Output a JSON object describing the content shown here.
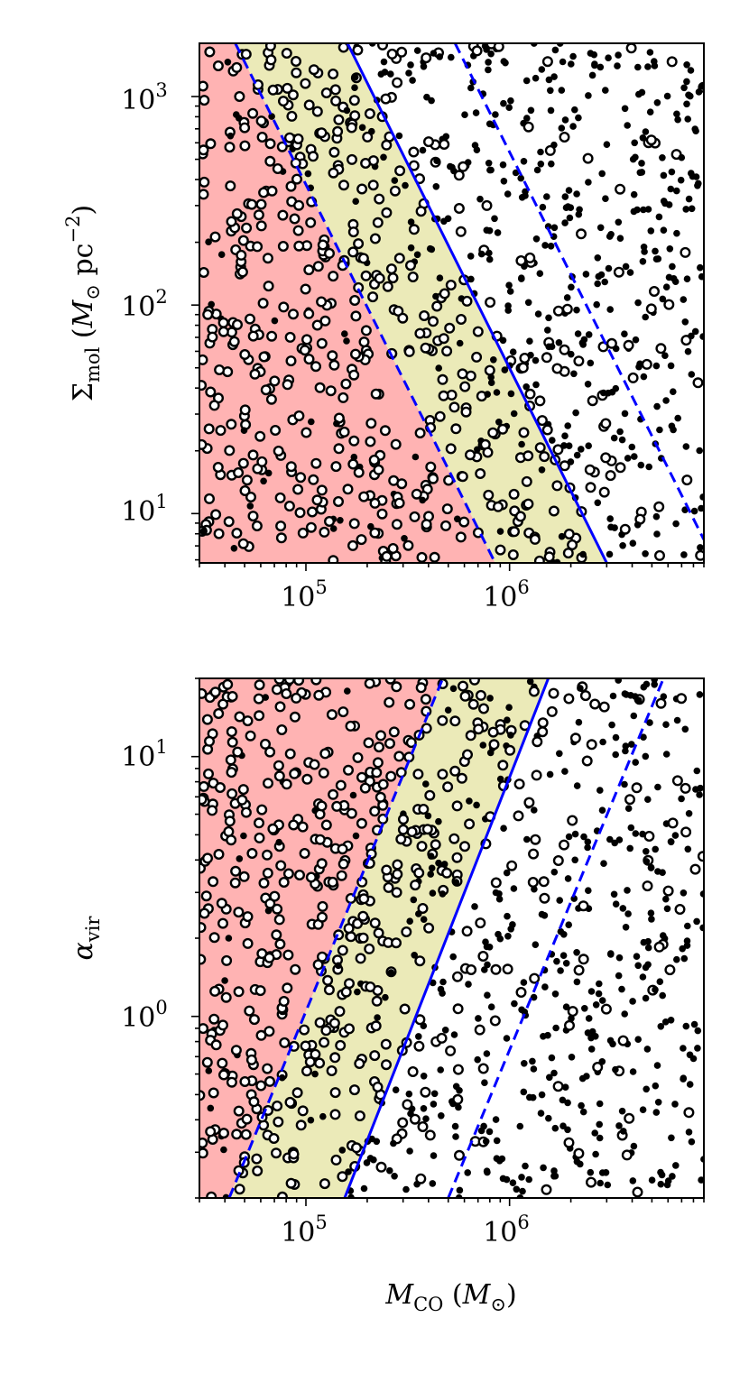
{
  "chart_data": [
    {
      "type": "scatter",
      "panel": "top",
      "xlabel": {
        "base": "M",
        "sub": "CO",
        "unit_open": " (",
        "unit": "M",
        "unit_sub": "⊙",
        "unit_close": ")"
      },
      "ylabel": {
        "base": "Σ",
        "sub": "mol",
        "unit_open": " (",
        "unit": "M",
        "unit_sub": "⊙",
        "unit_mid": " pc",
        "unit_sup": "−2",
        "unit_close": ")"
      },
      "xscale": "log",
      "yscale": "log",
      "xlim": [
        30000,
        9000000
      ],
      "ylim": [
        5.8,
        1800
      ],
      "xticks": [
        {
          "base": "10",
          "exp": "5"
        },
        {
          "base": "10",
          "exp": "6"
        }
      ],
      "yticks": [
        {
          "base": "10",
          "exp": "1"
        },
        {
          "base": "10",
          "exp": "2"
        },
        {
          "base": "10",
          "exp": "3"
        }
      ],
      "regions": [
        {
          "name": "below lower limit",
          "color": "#ffb3b3"
        },
        {
          "name": "between limits",
          "color": "#ebeab8"
        }
      ],
      "lines": [
        {
          "style": "solid",
          "color": "#0000ff",
          "points": [
            [
              160000,
              1800
            ],
            [
              3000000,
              5.8
            ]
          ]
        },
        {
          "style": "dashed",
          "color": "#0000ff",
          "points": [
            [
              45000,
              1800
            ],
            [
              850000,
              5.8
            ]
          ]
        },
        {
          "style": "dashed",
          "color": "#0000ff",
          "points": [
            [
              540000,
              1800
            ],
            [
              9000000,
              7.5
            ]
          ]
        }
      ],
      "series": [
        {
          "marker": "open circle",
          "color": "#000000",
          "n": 560
        },
        {
          "marker": "filled circle",
          "color": "#000000",
          "n": 430
        }
      ]
    },
    {
      "type": "scatter",
      "panel": "bottom",
      "xlabel": {
        "base": "M",
        "sub": "CO",
        "unit_open": " (",
        "unit": "M",
        "unit_sub": "⊙",
        "unit_close": ")"
      },
      "ylabel": {
        "base": "α",
        "sub": "vir"
      },
      "xscale": "log",
      "yscale": "log",
      "xlim": [
        30000,
        9000000
      ],
      "ylim": [
        0.2,
        20
      ],
      "xticks": [
        {
          "base": "10",
          "exp": "5"
        },
        {
          "base": "10",
          "exp": "6"
        }
      ],
      "yticks": [
        {
          "base": "10",
          "exp": "0"
        },
        {
          "base": "10",
          "exp": "1"
        }
      ],
      "regions": [
        {
          "name": "below lower limit",
          "color": "#ffb3b3"
        },
        {
          "name": "between limits",
          "color": "#ebeab8"
        }
      ],
      "lines": [
        {
          "style": "solid",
          "color": "#0000ff",
          "points": [
            [
              155000,
              0.2
            ],
            [
              1550000,
              20
            ]
          ]
        },
        {
          "style": "dashed",
          "color": "#0000ff",
          "points": [
            [
              42000,
              0.2
            ],
            [
              470000,
              20
            ]
          ]
        },
        {
          "style": "dashed",
          "color": "#0000ff",
          "points": [
            [
              500000,
              0.2
            ],
            [
              5700000,
              20
            ]
          ]
        }
      ],
      "series": [
        {
          "marker": "open circle",
          "color": "#000000",
          "n": 560
        },
        {
          "marker": "filled circle",
          "color": "#000000",
          "n": 430
        }
      ]
    }
  ]
}
